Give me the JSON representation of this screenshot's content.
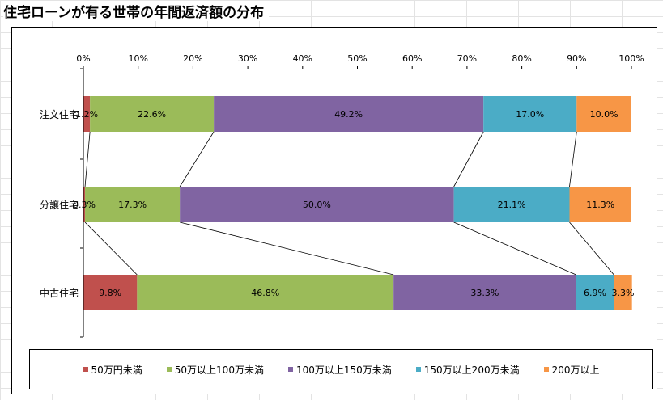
{
  "title": "住宅ローンが有る世帯の年間返済額の分布",
  "chart_data": {
    "type": "bar",
    "orientation": "horizontal",
    "stacked": "percent",
    "categories": [
      "注文住宅",
      "分譲住宅",
      "中古住宅"
    ],
    "series": [
      {
        "name": "50万円未満",
        "color": "#c0504d",
        "values": [
          1.2,
          0.3,
          9.8
        ],
        "labels": [
          "1.2%",
          "0.3%",
          "9.8%"
        ]
      },
      {
        "name": "50万以上100万未満",
        "color": "#9bbb59",
        "values": [
          22.6,
          17.3,
          46.8
        ],
        "labels": [
          "22.6%",
          "17.3%",
          "46.8%"
        ]
      },
      {
        "name": "100万以上150万未満",
        "color": "#8064a2",
        "values": [
          49.2,
          50.0,
          33.3
        ],
        "labels": [
          "49.2%",
          "50.0%",
          "33.3%"
        ]
      },
      {
        "name": "150万以上200万未満",
        "color": "#4bacc6",
        "values": [
          17.0,
          21.1,
          6.9
        ],
        "labels": [
          "17.0%",
          "21.1%",
          "6.9%"
        ]
      },
      {
        "name": "200万以上",
        "color": "#f79646",
        "values": [
          10.0,
          11.3,
          3.3
        ],
        "labels": [
          "10.0%",
          "11.3%",
          "3.3%"
        ]
      }
    ],
    "x_ticks": [
      "0%",
      "10%",
      "20%",
      "30%",
      "40%",
      "50%",
      "60%",
      "70%",
      "80%",
      "90%",
      "100%"
    ],
    "xlim": [
      0,
      100
    ],
    "series_lines": true,
    "grid": false,
    "legend": "bottom"
  }
}
